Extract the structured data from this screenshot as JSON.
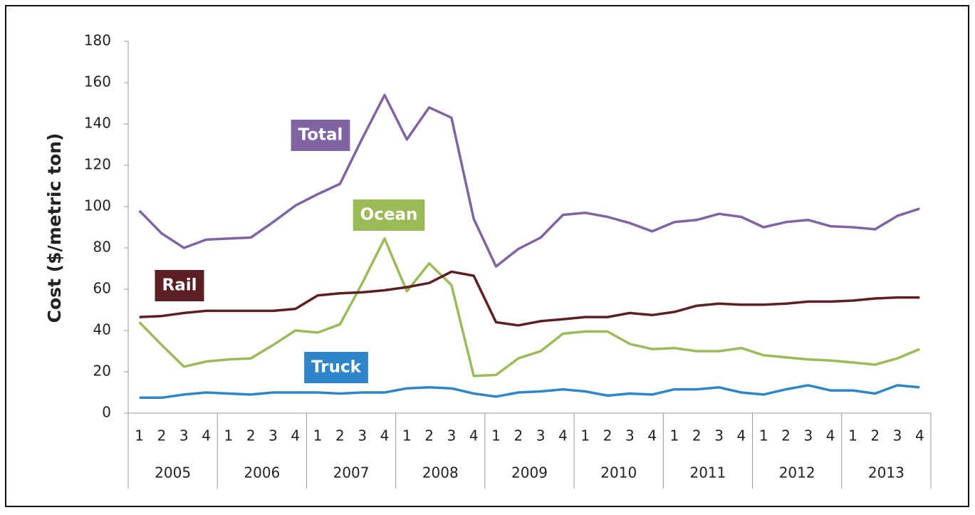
{
  "chart_data": {
    "type": "line",
    "y_label": "Cost ($/metric ton)",
    "categories": [
      "1",
      "2",
      "3",
      "4",
      "1",
      "2",
      "3",
      "4",
      "1",
      "2",
      "3",
      "4",
      "1",
      "2",
      "3",
      "4",
      "1",
      "2",
      "3",
      "4",
      "1",
      "2",
      "3",
      "4",
      "1",
      "2",
      "3",
      "4",
      "1",
      "2",
      "3",
      "4",
      "1",
      "2",
      "3",
      "4"
    ],
    "groups": [
      "2005",
      "2006",
      "2007",
      "2008",
      "2009",
      "2010",
      "2011",
      "2012",
      "2013"
    ],
    "series": [
      {
        "name": "Total",
        "color": "#8064a2",
        "values": [
          98,
          87,
          80,
          84,
          84.5,
          85,
          92.5,
          100.5,
          106,
          111,
          133,
          154,
          132.5,
          148,
          143,
          94,
          71,
          79.5,
          85,
          96,
          97,
          95,
          92,
          88,
          92.5,
          93.5,
          96.5,
          95,
          90,
          92.5,
          93.5,
          90.5,
          90,
          89,
          95.5,
          99
        ]
      },
      {
        "name": "Ocean",
        "color": "#9bbb59",
        "values": [
          44,
          33,
          22.5,
          25,
          26,
          26.5,
          33,
          40,
          39,
          43,
          63,
          84.5,
          59,
          72.5,
          62,
          18,
          18.5,
          26.5,
          30,
          38.5,
          39.5,
          39.5,
          33.5,
          31,
          31.5,
          30,
          30,
          31.5,
          28,
          27,
          26,
          25.5,
          24.5,
          23.5,
          26.5,
          31
        ]
      },
      {
        "name": "Rail",
        "color": "#5c1f24",
        "values": [
          46.5,
          47,
          48.5,
          49.5,
          49.5,
          49.5,
          49.5,
          50.5,
          57,
          58,
          58.5,
          59.5,
          61,
          63,
          68.5,
          66.5,
          44,
          42.5,
          44.5,
          45.5,
          46.5,
          46.5,
          48.5,
          47.5,
          49,
          52,
          53,
          52.5,
          52.5,
          53,
          54,
          54,
          54.5,
          55.5,
          56,
          56
        ]
      },
      {
        "name": "Truck",
        "color": "#2e86c8",
        "values": [
          7.5,
          7.5,
          9,
          10,
          9.5,
          9,
          10,
          10,
          10,
          9.5,
          10,
          10,
          12,
          12.5,
          12,
          9.5,
          8,
          10,
          10.5,
          11.5,
          10.5,
          8.5,
          9.5,
          9,
          11.5,
          11.5,
          12.5,
          10,
          9,
          11.5,
          13.5,
          11,
          11,
          9.5,
          13.5,
          12.5
        ]
      }
    ],
    "ylim": [
      0,
      180
    ],
    "yticks": [
      0,
      20,
      40,
      60,
      80,
      100,
      120,
      140,
      160,
      180
    ]
  }
}
